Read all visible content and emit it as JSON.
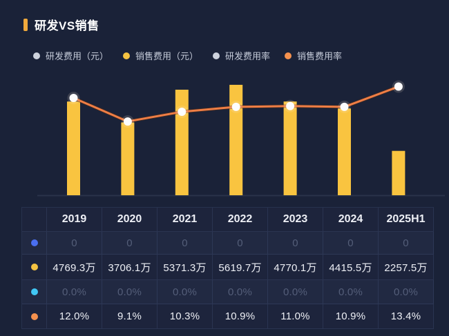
{
  "header": {
    "title": "研发VS销售"
  },
  "colors": {
    "background": "#1A2238",
    "accent-bar": "#F0A93C",
    "text-bright": "#EDEFF5",
    "text-dim": "#545E79"
  },
  "legend": {
    "items": [
      {
        "label": "研发费用（元）",
        "active": false,
        "dot_color": "#CDD2DD"
      },
      {
        "label": "销售费用（元）",
        "active": true,
        "dot_color": "#F5C342"
      },
      {
        "label": "研发费用率",
        "active": false,
        "dot_color": "#CDD2DD"
      },
      {
        "label": "销售费用率",
        "active": true,
        "dot_color": "#F5914E"
      }
    ]
  },
  "chart_data": {
    "type": "bar",
    "title": "研发VS销售",
    "categories": [
      "2019",
      "2020",
      "2021",
      "2022",
      "2023",
      "2024",
      "2025H1"
    ],
    "series": [
      {
        "name": "研发费用（元）",
        "type": "bar",
        "visible": false,
        "unit": "万",
        "color": "#4A6FF0",
        "values": [
          0,
          0,
          0,
          0,
          0,
          0,
          0
        ]
      },
      {
        "name": "销售费用（元）",
        "type": "bar",
        "visible": true,
        "unit": "万",
        "color": "#F9C440",
        "values": [
          4769.3,
          3706.1,
          5371.3,
          5619.7,
          4770.1,
          4415.5,
          2257.5
        ]
      },
      {
        "name": "研发费用率",
        "type": "line",
        "visible": false,
        "unit": "%",
        "color": "#41C7F4",
        "values": [
          0.0,
          0.0,
          0.0,
          0.0,
          0.0,
          0.0,
          0.0
        ]
      },
      {
        "name": "销售费用率",
        "type": "line",
        "visible": true,
        "unit": "%",
        "color": "#EF7E45",
        "values": [
          12.0,
          9.1,
          10.3,
          10.9,
          11.0,
          10.9,
          13.4
        ]
      }
    ],
    "bar_axis_max": 6600,
    "rate_axis_max": 16,
    "grid": false,
    "legend_position": "top",
    "xlabel": "",
    "ylabel": ""
  },
  "table": {
    "columns": [
      "2019",
      "2020",
      "2021",
      "2022",
      "2023",
      "2024",
      "2025H1"
    ],
    "rows": [
      {
        "series": "研发费用（元）",
        "dot_color": "#4A6FF0",
        "dimmed": true,
        "values": [
          "0",
          "0",
          "0",
          "0",
          "0",
          "0",
          "0"
        ]
      },
      {
        "series": "销售费用（元）",
        "dot_color": "#F5C342",
        "dimmed": false,
        "values": [
          "4769.3万",
          "3706.1万",
          "5371.3万",
          "5619.7万",
          "4770.1万",
          "4415.5万",
          "2257.5万"
        ]
      },
      {
        "series": "研发费用率",
        "dot_color": "#41C7F4",
        "dimmed": true,
        "values": [
          "0.0%",
          "0.0%",
          "0.0%",
          "0.0%",
          "0.0%",
          "0.0%",
          "0.0%"
        ]
      },
      {
        "series": "销售费用率",
        "dot_color": "#F5914E",
        "dimmed": false,
        "values": [
          "12.0%",
          "9.1%",
          "10.3%",
          "10.9%",
          "11.0%",
          "10.9%",
          "13.4%"
        ]
      }
    ]
  }
}
